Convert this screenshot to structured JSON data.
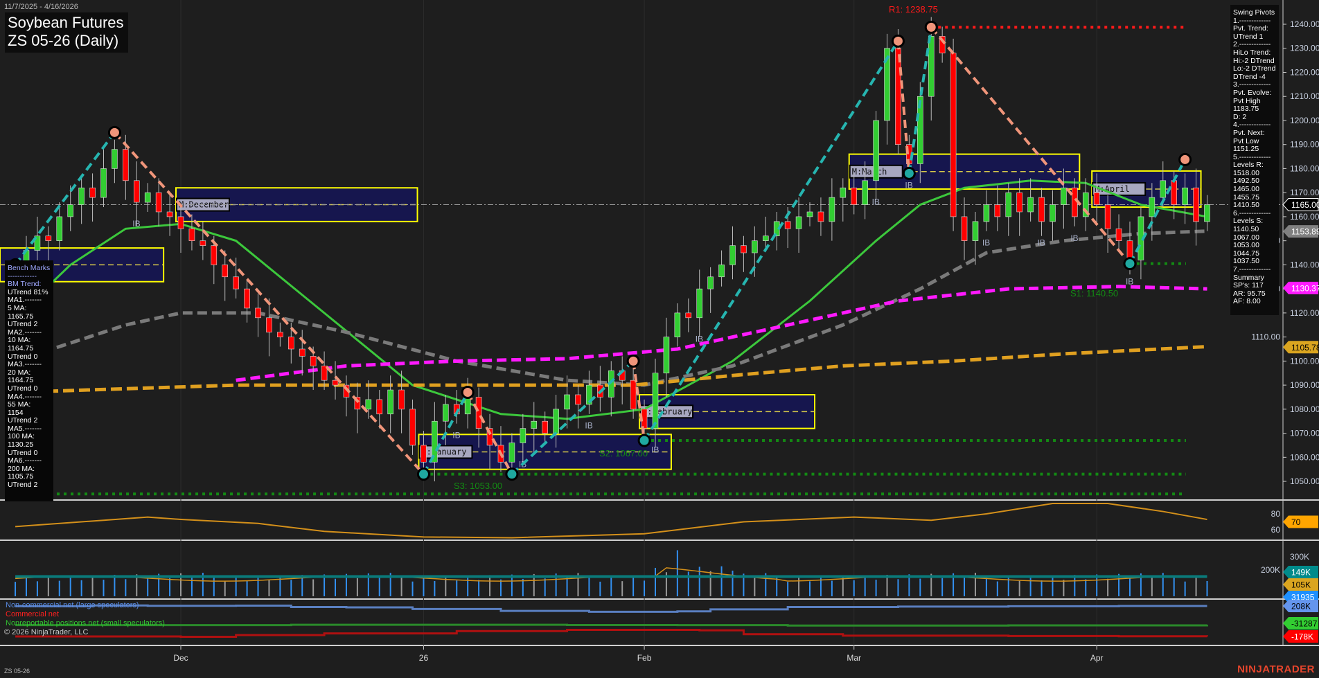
{
  "header": {
    "date_range": "11/7/2025 - 4/16/2026",
    "title_line1": "Soybean Futures",
    "title_line2": "ZS 05-26 (Daily)"
  },
  "swing_pivots": [
    "Swing Pivots",
    "1.-------------",
    "Pvt. Trend:",
    "UTrend 1",
    "2.-------------",
    "HiLo Trend:",
    "Hi:-2 DTrend",
    "Lo:-2 DTrend",
    "DTrend -4",
    "3.-------------",
    "Pvt. Evolve:",
    "Pvt High",
    "1183.75",
    "D: 2",
    "4.-------------",
    "Pvt. Next:",
    "Pvt Low",
    "1151.25",
    "5.-------------",
    "Levels R:",
    "1518.00",
    "1492.50",
    "1465.00",
    "1455.75",
    "1410.50",
    "6.-------------",
    "Levels S:",
    "1140.50",
    "1067.00",
    "1053.00",
    "1044.75",
    "1037.50",
    "7.-------------",
    "Summary",
    "SP's: 117",
    "AR: 95.75",
    "AF: 8.00"
  ],
  "bench_marks": [
    "Bench Marks",
    "------------",
    "BM Trend:",
    "UTrend 81%",
    "MA1.-------",
    "5 MA:",
    "1165.75",
    "UTrend 2",
    "MA2.-------",
    "10 MA:",
    "1164.75",
    "UTrend 0",
    "MA3.-------",
    "20 MA:",
    "1164.75",
    "UTrend 0",
    "MA4.-------",
    "55 MA:",
    "1154",
    "UTrend 2",
    "MA5.-------",
    "100 MA:",
    "1130.25",
    "UTrend 0",
    "MA6.-------",
    "200 MA:",
    "1105.75",
    "UTrend 2"
  ],
  "legend": {
    "noncommercial": "Non-commercial net (large speculators)",
    "commercial": "Commercial net",
    "nonreportable": "Nonreportable positions net (small speculators)"
  },
  "footer": {
    "symbol": "ZS 05-26",
    "copyright": "© 2026 NinjaTrader, LLC",
    "brand": "NINJATRADER"
  },
  "colors": {
    "up": "#32cd32",
    "down": "#ff0000",
    "ma20": "#3cc83c",
    "ma55": "#808080",
    "ma100": "#ff1aff",
    "ma200": "#e0a020",
    "swing_up": "#26b5b0",
    "swing_down": "#f0957a",
    "box_fill": "#16164e",
    "box_border": "#ffff00"
  },
  "chart_data": {
    "type": "candlestick",
    "price_axis": {
      "min": 1050,
      "max": 1240,
      "step": 10,
      "ticks": [
        "1050.00",
        "1060.00",
        "1070.00",
        "1080.00",
        "1090.00",
        "1100.00",
        "1110.00",
        "1120.00",
        "1130.00",
        "1140.00",
        "1150.00",
        "1160.00",
        "1170.00",
        "1180.00",
        "1190.00",
        "1200.00",
        "1210.00",
        "1220.00",
        "1230.00",
        "1240.00"
      ]
    },
    "x_labels": [
      {
        "bar": 15,
        "label": "Dec"
      },
      {
        "bar": 37,
        "label": "26"
      },
      {
        "bar": 57,
        "label": "Feb"
      },
      {
        "bar": 76,
        "label": "Mar"
      },
      {
        "bar": 98,
        "label": "Apr"
      }
    ],
    "closes": [
      1138,
      1146,
      1152,
      1150,
      1160,
      1165,
      1172,
      1168,
      1180,
      1188,
      1175,
      1166,
      1170,
      1162,
      1160,
      1155,
      1150,
      1148,
      1140,
      1135,
      1130,
      1122,
      1118,
      1112,
      1110,
      1105,
      1102,
      1098,
      1092,
      1090,
      1085,
      1080,
      1084,
      1078,
      1088,
      1080,
      1065,
      1058,
      1075,
      1082,
      1078,
      1085,
      1072,
      1065,
      1058,
      1066,
      1072,
      1075,
      1070,
      1080,
      1086,
      1082,
      1090,
      1085,
      1096,
      1092,
      1080,
      1072,
      1095,
      1110,
      1120,
      1118,
      1130,
      1135,
      1140,
      1148,
      1145,
      1150,
      1152,
      1158,
      1155,
      1160,
      1162,
      1158,
      1168,
      1172,
      1165,
      1175,
      1200,
      1230,
      1190,
      1182,
      1210,
      1235,
      1228,
      1160,
      1150,
      1158,
      1165,
      1160,
      1170,
      1162,
      1168,
      1158,
      1165,
      1172,
      1160,
      1170,
      1165,
      1155,
      1150,
      1142,
      1160,
      1168,
      1175,
      1165,
      1172,
      1158,
      1165
    ],
    "moving_averages": [
      {
        "name": "20 MA",
        "color": "#3cc83c",
        "dash": "",
        "points": [
          [
            0,
            1118
          ],
          [
            5,
            1140
          ],
          [
            10,
            1155
          ],
          [
            15,
            1157
          ],
          [
            20,
            1150
          ],
          [
            28,
            1120
          ],
          [
            36,
            1090
          ],
          [
            44,
            1078
          ],
          [
            50,
            1076
          ],
          [
            57,
            1080
          ],
          [
            65,
            1100
          ],
          [
            72,
            1125
          ],
          [
            78,
            1150
          ],
          [
            82,
            1165
          ],
          [
            86,
            1172
          ],
          [
            92,
            1175
          ],
          [
            97,
            1174
          ],
          [
            102,
            1165
          ],
          [
            108,
            1160
          ]
        ]
      },
      {
        "name": "55 MA",
        "color": "#7a7a7a",
        "dash": "14 7",
        "points": [
          [
            0,
            1100
          ],
          [
            10,
            1115
          ],
          [
            15,
            1120
          ],
          [
            22,
            1120
          ],
          [
            30,
            1112
          ],
          [
            40,
            1100
          ],
          [
            50,
            1092
          ],
          [
            57,
            1090
          ],
          [
            65,
            1098
          ],
          [
            75,
            1115
          ],
          [
            82,
            1130
          ],
          [
            88,
            1145
          ],
          [
            95,
            1150
          ],
          [
            102,
            1153
          ],
          [
            108,
            1154
          ]
        ]
      },
      {
        "name": "100 MA",
        "color": "#ff1aff",
        "dash": "14 7",
        "points": [
          [
            20,
            1092
          ],
          [
            30,
            1098
          ],
          [
            40,
            1100
          ],
          [
            50,
            1101
          ],
          [
            60,
            1105
          ],
          [
            70,
            1115
          ],
          [
            80,
            1125
          ],
          [
            90,
            1130
          ],
          [
            100,
            1131
          ],
          [
            108,
            1130
          ]
        ]
      },
      {
        "name": "200 MA",
        "color": "#e0a020",
        "dash": "16 7",
        "points": [
          [
            0,
            1087
          ],
          [
            20,
            1090
          ],
          [
            40,
            1090
          ],
          [
            56,
            1090
          ],
          [
            65,
            1094
          ],
          [
            75,
            1098
          ],
          [
            85,
            1100
          ],
          [
            95,
            1103
          ],
          [
            108,
            1106
          ]
        ]
      }
    ],
    "swing_legs": [
      [
        0,
        1140,
        9,
        1195
      ],
      [
        9,
        1195,
        37,
        1053
      ],
      [
        37,
        1053,
        41,
        1087
      ],
      [
        41,
        1087,
        45,
        1053
      ],
      [
        45,
        1053,
        56,
        1100
      ],
      [
        56,
        1100,
        57,
        1067
      ],
      [
        57,
        1067,
        80,
        1233
      ],
      [
        80,
        1233,
        81,
        1178
      ],
      [
        81,
        1178,
        83,
        1238.75
      ],
      [
        83,
        1238.75,
        101,
        1140.5
      ],
      [
        101,
        1140.5,
        106,
        1183.75
      ]
    ],
    "monthly_boxes": [
      {
        "label": "",
        "from_bar": -1,
        "to_bar": 13,
        "high": 1147,
        "low": 1133
      },
      {
        "label": "M:December",
        "from_bar": 15,
        "to_bar": 36,
        "high": 1172,
        "low": 1158
      },
      {
        "label": "M:January",
        "from_bar": 37,
        "to_bar": 59,
        "high": 1069.5,
        "low": 1055
      },
      {
        "label": "M:February",
        "from_bar": 57,
        "to_bar": 72,
        "high": 1086,
        "low": 1072
      },
      {
        "label": "M:March",
        "from_bar": 76,
        "to_bar": 96,
        "high": 1186,
        "low": 1171.5
      },
      {
        "label": "M:April",
        "from_bar": 98,
        "to_bar": 107,
        "high": 1179,
        "low": 1164
      }
    ],
    "levels": [
      {
        "label": "R1: 1238.75",
        "price": 1238.75,
        "from_bar": 83,
        "color": "#ff1a1a"
      },
      {
        "label": "S1: 1140.50",
        "price": 1140.5,
        "from_bar": 101,
        "color": "#138a13"
      },
      {
        "label": "S2: 1067.00",
        "price": 1067,
        "from_bar": 57,
        "color": "#138a13"
      },
      {
        "label": "S3: 1053.00",
        "price": 1053,
        "from_bar": 37,
        "color": "#138a13"
      },
      {
        "label": "",
        "price": 1044.75,
        "from_bar": 0,
        "color": "#138a13"
      }
    ],
    "current_price": 1165.0,
    "price_tags": [
      {
        "value": "1165.00",
        "price": 1165,
        "bg": "#000000",
        "fg": "#ffffff"
      },
      {
        "value": "1153.89",
        "price": 1153.89,
        "bg": "#808080",
        "fg": "#ffffff"
      },
      {
        "value": "1130.37",
        "price": 1130.37,
        "bg": "#ff1aff",
        "fg": "#ffffff"
      },
      {
        "value": "1105.78",
        "price": 1105.78,
        "bg": "#daa520",
        "fg": "#000000"
      }
    ],
    "ib_bars": [
      11,
      40,
      46,
      52,
      58,
      62,
      78,
      81,
      88,
      93,
      96,
      101
    ],
    "oscillator": {
      "ticks": [
        "80",
        "60"
      ],
      "tag": "70",
      "points": [
        [
          0,
          64
        ],
        [
          8,
          72
        ],
        [
          12,
          76
        ],
        [
          15,
          73
        ],
        [
          22,
          68
        ],
        [
          28,
          58
        ],
        [
          37,
          51
        ],
        [
          45,
          50
        ],
        [
          57,
          55
        ],
        [
          66,
          70
        ],
        [
          76,
          76
        ],
        [
          83,
          72
        ],
        [
          88,
          80
        ],
        [
          94,
          93
        ],
        [
          99,
          93
        ],
        [
          104,
          83
        ],
        [
          108,
          73
        ]
      ]
    },
    "volume": {
      "ticks": [
        "300K",
        "200K"
      ],
      "tags": [
        {
          "value": "149K",
          "bg": "#008b8b",
          "fg": "#fff"
        },
        {
          "value": "105K",
          "bg": "#daa520",
          "fg": "#000"
        },
        {
          "value": "31935",
          "bg": "#1e90ff",
          "fg": "#fff"
        }
      ],
      "spike_bar": 60
    },
    "cot": {
      "tags": [
        {
          "value": "208K",
          "bg": "#6495ed",
          "fg": "#000"
        },
        {
          "value": "-31287",
          "bg": "#32cd32",
          "fg": "#000"
        },
        {
          "value": "-178K",
          "bg": "#ff0000",
          "fg": "#fff"
        }
      ],
      "noncommercial": [
        [
          0,
          205
        ],
        [
          7,
          215
        ],
        [
          12,
          210
        ],
        [
          20,
          212
        ],
        [
          25,
          195
        ],
        [
          30,
          190
        ],
        [
          36,
          170
        ],
        [
          44,
          145
        ],
        [
          52,
          135
        ],
        [
          60,
          140
        ],
        [
          63,
          165
        ],
        [
          70,
          195
        ],
        [
          80,
          200
        ],
        [
          90,
          205
        ],
        [
          100,
          208
        ],
        [
          108,
          208
        ]
      ],
      "nonreportable": [
        [
          0,
          -34
        ],
        [
          25,
          -30
        ],
        [
          50,
          -33
        ],
        [
          60,
          -34
        ],
        [
          70,
          -40
        ],
        [
          90,
          -38
        ],
        [
          108,
          -31
        ]
      ],
      "commercial": [
        [
          0,
          -178
        ],
        [
          15,
          -182
        ],
        [
          20,
          -160
        ],
        [
          28,
          -140
        ],
        [
          40,
          -110
        ],
        [
          50,
          -95
        ],
        [
          62,
          -100
        ],
        [
          66,
          -150
        ],
        [
          75,
          -168
        ],
        [
          90,
          -172
        ],
        [
          100,
          -176
        ],
        [
          108,
          -178
        ]
      ]
    }
  }
}
